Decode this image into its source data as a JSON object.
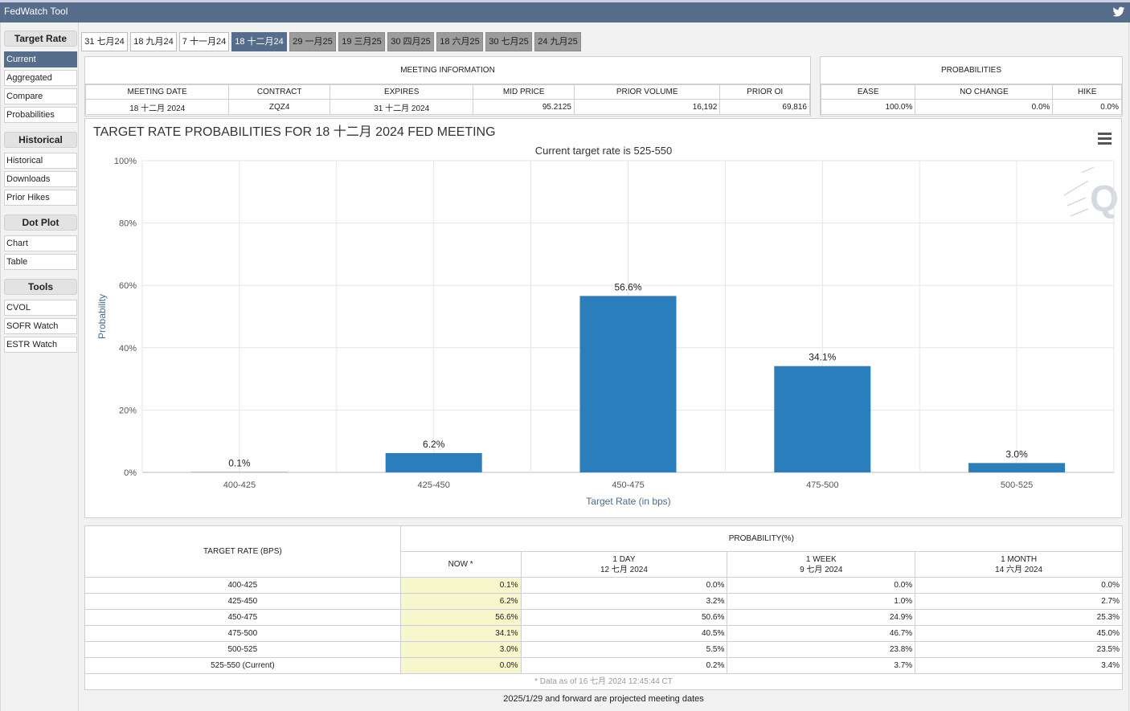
{
  "app": {
    "title": "FedWatch Tool"
  },
  "sidebar": {
    "sections": [
      {
        "heading": "Target Rate",
        "items": [
          "Current",
          "Aggregated",
          "Compare",
          "Probabilities"
        ]
      },
      {
        "heading": "Historical",
        "items": [
          "Historical",
          "Downloads",
          "Prior Hikes"
        ]
      },
      {
        "heading": "Dot Plot",
        "items": [
          "Chart",
          "Table"
        ]
      },
      {
        "heading": "Tools",
        "items": [
          "CVOL",
          "SOFR Watch",
          "ESTR Watch"
        ]
      }
    ],
    "active_item": "Current"
  },
  "tabs": [
    {
      "label": "31 七月24",
      "state": "past"
    },
    {
      "label": "18 九月24",
      "state": "past"
    },
    {
      "label": "7 十一月24",
      "state": "past"
    },
    {
      "label": "18 十二月24",
      "state": "active"
    },
    {
      "label": "29 一月25",
      "state": "future"
    },
    {
      "label": "19 三月25",
      "state": "future"
    },
    {
      "label": "30 四月25",
      "state": "future"
    },
    {
      "label": "18 六月25",
      "state": "future"
    },
    {
      "label": "30 七月25",
      "state": "future"
    },
    {
      "label": "24 九月25",
      "state": "future"
    }
  ],
  "meeting_info": {
    "heading": "MEETING INFORMATION",
    "columns": [
      "MEETING DATE",
      "CONTRACT",
      "EXPIRES",
      "MID PRICE",
      "PRIOR VOLUME",
      "PRIOR OI"
    ],
    "values": [
      "18 十二月 2024",
      "ZQZ4",
      "31 十二月 2024",
      "95.2125",
      "16,192",
      "69,816"
    ]
  },
  "probabilities": {
    "heading": "PROBABILITIES",
    "columns": [
      "EASE",
      "NO CHANGE",
      "HIKE"
    ],
    "values": [
      "100.0%",
      "0.0%",
      "0.0%"
    ]
  },
  "chart_data": {
    "type": "bar",
    "title": "TARGET RATE PROBABILITIES FOR 18 十二月 2024 FED MEETING",
    "subtitle": "Current target rate is 525-550",
    "xlabel": "Target Rate (in bps)",
    "ylabel": "Probability",
    "categories": [
      "400-425",
      "425-450",
      "450-475",
      "475-500",
      "500-525"
    ],
    "values": [
      0.1,
      6.2,
      56.6,
      34.1,
      3.0
    ],
    "data_labels": [
      "0.1%",
      "6.2%",
      "56.6%",
      "34.1%",
      "3.0%"
    ],
    "ylim": [
      0,
      100
    ],
    "yticks": [
      "0%",
      "20%",
      "40%",
      "60%",
      "80%",
      "100%"
    ],
    "grid": true,
    "bar_color": "#2a7ebb"
  },
  "table": {
    "rate_header": "TARGET RATE (BPS)",
    "prob_header": "PROBABILITY(%)",
    "cols": [
      {
        "line1": "NOW *",
        "line2": ""
      },
      {
        "line1": "1 DAY",
        "line2": "12 七月 2024"
      },
      {
        "line1": "1 WEEK",
        "line2": "9 七月 2024"
      },
      {
        "line1": "1 MONTH",
        "line2": "14 六月 2024"
      }
    ],
    "rows": [
      [
        "400-425",
        "0.1%",
        "0.0%",
        "0.0%",
        "0.0%"
      ],
      [
        "425-450",
        "6.2%",
        "3.2%",
        "1.0%",
        "2.7%"
      ],
      [
        "450-475",
        "56.6%",
        "50.6%",
        "24.9%",
        "25.3%"
      ],
      [
        "475-500",
        "34.1%",
        "40.5%",
        "46.7%",
        "45.0%"
      ],
      [
        "500-525",
        "3.0%",
        "5.5%",
        "23.8%",
        "23.5%"
      ],
      [
        "525-550 (Current)",
        "0.0%",
        "0.2%",
        "3.7%",
        "3.4%"
      ]
    ],
    "note": "* Data as of 16 七月 2024 12:45:44 CT"
  },
  "footer": "2025/1/29 and forward are projected meeting dates",
  "colors": {
    "accent": "#566d8c",
    "now_col": "#f7f7cc",
    "future_tab": "#9c9c9c"
  }
}
